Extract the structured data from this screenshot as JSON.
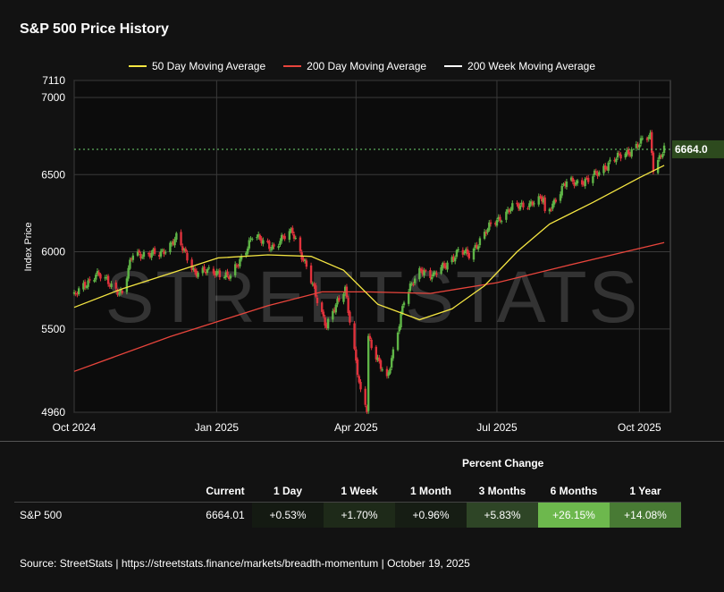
{
  "title": "S&P 500 Price History",
  "legend": [
    {
      "label": "50 Day Moving Average",
      "color": "#f5e642"
    },
    {
      "label": "200 Day Moving Average",
      "color": "#e8453c"
    },
    {
      "label": "200 Week Moving Average",
      "color": "#ffffff"
    }
  ],
  "colors": {
    "up": "#5fb547",
    "down": "#e0323c",
    "grid": "#3a3a3a",
    "price_marker": "#2d4a1e",
    "last_line": "#6fd36f"
  },
  "chart_data": {
    "type": "candlestick",
    "ylabel": "Index Price",
    "ylim": [
      4960,
      7110
    ],
    "y_ticks": [
      "7110",
      "7000",
      "6500",
      "6000",
      "5500",
      "4960"
    ],
    "x_ticks": [
      "Oct 2024",
      "Jan 2025",
      "Apr 2025",
      "Jul 2025",
      "Oct 2025"
    ],
    "last_price_label": "6664.0",
    "last_price": 6664.01,
    "close_series": [
      [
        "2024-10-01",
        5710
      ],
      [
        "2024-10-15",
        5860
      ],
      [
        "2024-11-01",
        5730
      ],
      [
        "2024-11-08",
        5990
      ],
      [
        "2024-11-25",
        5980
      ],
      [
        "2024-12-06",
        6090
      ],
      [
        "2024-12-18",
        5870
      ],
      [
        "2025-01-02",
        5870
      ],
      [
        "2025-01-10",
        5830
      ],
      [
        "2025-01-24",
        6100
      ],
      [
        "2025-02-07",
        6030
      ],
      [
        "2025-02-19",
        6140
      ],
      [
        "2025-03-04",
        5780
      ],
      [
        "2025-03-13",
        5520
      ],
      [
        "2025-03-25",
        5770
      ],
      [
        "2025-04-04",
        5075
      ],
      [
        "2025-04-08",
        4980
      ],
      [
        "2025-04-09",
        5450
      ],
      [
        "2025-04-21",
        5160
      ],
      [
        "2025-05-02",
        5690
      ],
      [
        "2025-05-13",
        5890
      ],
      [
        "2025-05-21",
        5840
      ],
      [
        "2025-06-06",
        6000
      ],
      [
        "2025-06-13",
        5980
      ],
      [
        "2025-06-27",
        6170
      ],
      [
        "2025-07-10",
        6280
      ],
      [
        "2025-07-31",
        6340
      ],
      [
        "2025-08-01",
        6240
      ],
      [
        "2025-08-15",
        6450
      ],
      [
        "2025-08-29",
        6460
      ],
      [
        "2025-09-12",
        6580
      ],
      [
        "2025-09-24",
        6650
      ],
      [
        "2025-10-08",
        6750
      ],
      [
        "2025-10-10",
        6550
      ],
      [
        "2025-10-17",
        6664
      ]
    ],
    "ma50": [
      [
        "2024-10-01",
        5640
      ],
      [
        "2024-11-01",
        5760
      ],
      [
        "2024-12-02",
        5860
      ],
      [
        "2025-01-02",
        5960
      ],
      [
        "2025-02-03",
        5980
      ],
      [
        "2025-03-03",
        5970
      ],
      [
        "2025-03-24",
        5880
      ],
      [
        "2025-04-15",
        5660
      ],
      [
        "2025-05-12",
        5560
      ],
      [
        "2025-06-02",
        5630
      ],
      [
        "2025-06-23",
        5780
      ],
      [
        "2025-07-14",
        6000
      ],
      [
        "2025-08-04",
        6180
      ],
      [
        "2025-09-01",
        6320
      ],
      [
        "2025-10-01",
        6480
      ],
      [
        "2025-10-17",
        6560
      ]
    ],
    "ma200": [
      [
        "2024-10-01",
        5225
      ],
      [
        "2024-12-02",
        5450
      ],
      [
        "2025-02-03",
        5650
      ],
      [
        "2025-03-10",
        5740
      ],
      [
        "2025-04-08",
        5740
      ],
      [
        "2025-05-19",
        5730
      ],
      [
        "2025-07-01",
        5800
      ],
      [
        "2025-08-15",
        5910
      ],
      [
        "2025-10-17",
        6060
      ]
    ]
  },
  "table": {
    "section_title": "Percent Change",
    "headers": [
      "",
      "Current",
      "1 Day",
      "1 Week",
      "1 Month",
      "3 Months",
      "6 Months",
      "1 Year"
    ],
    "row": {
      "name": "S&P 500",
      "current": "6664.01",
      "changes": [
        {
          "text": "+0.53%",
          "color": "#141a12"
        },
        {
          "text": "+1.70%",
          "color": "#1e2a19"
        },
        {
          "text": "+0.96%",
          "color": "#161d14"
        },
        {
          "text": "+5.83%",
          "color": "#2e4526"
        },
        {
          "text": "+26.15%",
          "color": "#6db84d"
        },
        {
          "text": "+14.08%",
          "color": "#487a34"
        }
      ]
    }
  },
  "source": "Source:  StreetStats  |  https://streetstats.finance/markets/breadth-momentum  |  October 19, 2025"
}
